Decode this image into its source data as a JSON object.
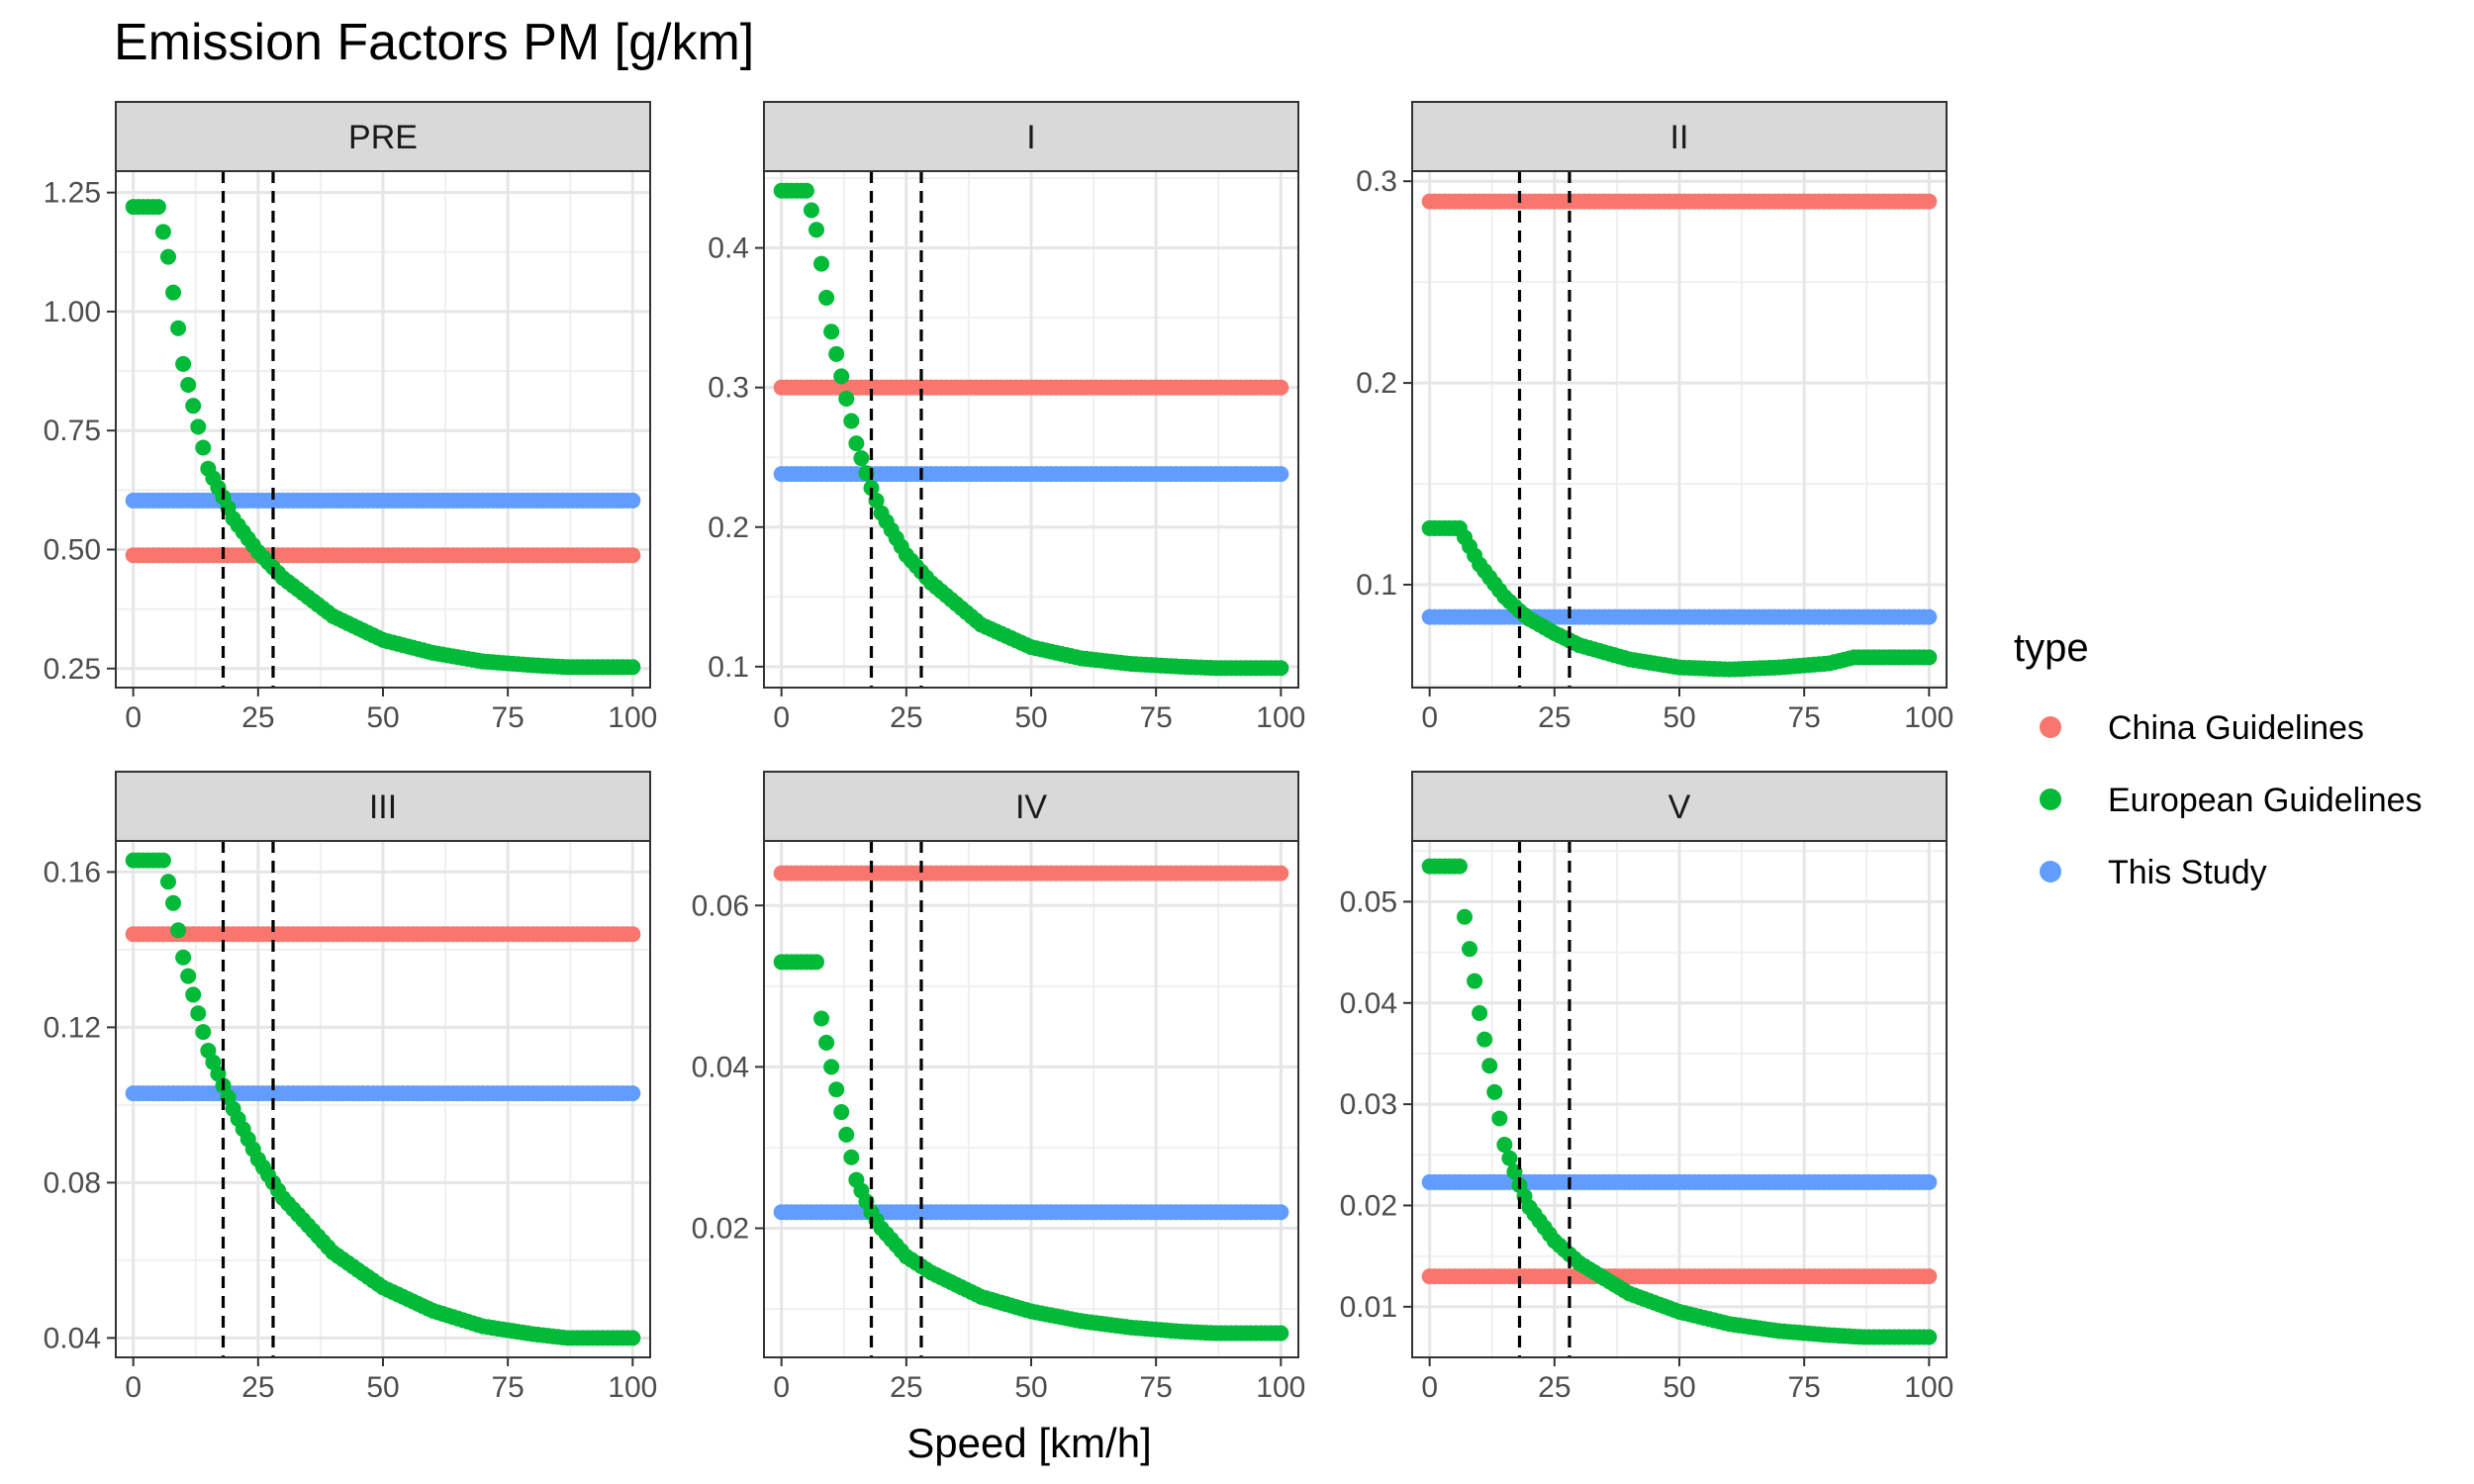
{
  "chart_data": {
    "type": "scatter",
    "title": "Emission Factors PM [g/km]",
    "xlabel": "Speed [km/h]",
    "ylabel": "",
    "xlim": [
      0,
      100
    ],
    "x_ticks": [
      0,
      25,
      50,
      75,
      100
    ],
    "x_tick_labels": [
      "0",
      "25",
      "50",
      "75",
      "100"
    ],
    "grid": true,
    "legend": {
      "title": "type",
      "position": "right",
      "entries": [
        {
          "name": "China Guidelines",
          "color": "#F8766D"
        },
        {
          "name": "European Guidelines",
          "color": "#00BA38"
        },
        {
          "name": "This Study",
          "color": "#619CFF"
        }
      ]
    },
    "reference_lines_x": [
      18,
      28
    ],
    "x_range_sampled": {
      "start": 0,
      "end": 100,
      "step": 1
    },
    "panels": [
      {
        "name": "PRE",
        "ylim": [
          0.21,
          1.295
        ],
        "y_ticks": [
          0.25,
          0.5,
          0.75,
          1.0,
          1.25
        ],
        "y_tick_labels": [
          "0.25",
          "0.50",
          "0.75",
          "1.00",
          "1.25"
        ],
        "series": [
          {
            "name": "China Guidelines",
            "type": "constant",
            "value": 0.488
          },
          {
            "name": "This Study",
            "type": "constant",
            "value": 0.603
          },
          {
            "name": "European Guidelines",
            "type": "curve",
            "points": [
              [
                0,
                1.22
              ],
              [
                5,
                1.22
              ],
              [
                7,
                1.115
              ],
              [
                10,
                0.89
              ],
              [
                15,
                0.67
              ],
              [
                18,
                0.61
              ],
              [
                20,
                0.565
              ],
              [
                25,
                0.495
              ],
              [
                30,
                0.44
              ],
              [
                40,
                0.36
              ],
              [
                50,
                0.31
              ],
              [
                60,
                0.283
              ],
              [
                70,
                0.265
              ],
              [
                80,
                0.257
              ],
              [
                87,
                0.253
              ],
              [
                100,
                0.253
              ]
            ]
          }
        ]
      },
      {
        "name": "I",
        "ylim": [
          0.085,
          0.455
        ],
        "y_ticks": [
          0.1,
          0.2,
          0.3,
          0.4
        ],
        "y_tick_labels": [
          "0.1",
          "0.2",
          "0.3",
          "0.4"
        ],
        "series": [
          {
            "name": "China Guidelines",
            "type": "constant",
            "value": 0.3
          },
          {
            "name": "This Study",
            "type": "constant",
            "value": 0.238
          },
          {
            "name": "European Guidelines",
            "type": "curve",
            "points": [
              [
                0,
                0.441
              ],
              [
                5,
                0.441
              ],
              [
                7,
                0.413
              ],
              [
                10,
                0.34
              ],
              [
                15,
                0.26
              ],
              [
                18,
                0.228
              ],
              [
                20,
                0.21
              ],
              [
                25,
                0.18
              ],
              [
                30,
                0.16
              ],
              [
                40,
                0.13
              ],
              [
                50,
                0.114
              ],
              [
                60,
                0.106
              ],
              [
                70,
                0.102
              ],
              [
                80,
                0.1
              ],
              [
                87,
                0.099
              ],
              [
                100,
                0.099
              ]
            ]
          }
        ]
      },
      {
        "name": "II",
        "ylim": [
          0.049,
          0.305
        ],
        "y_ticks": [
          0.1,
          0.2,
          0.3
        ],
        "y_tick_labels": [
          "0.1",
          "0.2",
          "0.3"
        ],
        "series": [
          {
            "name": "China Guidelines",
            "type": "constant",
            "value": 0.29
          },
          {
            "name": "This Study",
            "type": "constant",
            "value": 0.084
          },
          {
            "name": "European Guidelines",
            "type": "curve",
            "points": [
              [
                0,
                0.128
              ],
              [
                6,
                0.128
              ],
              [
                10,
                0.11
              ],
              [
                15,
                0.094
              ],
              [
                18,
                0.087
              ],
              [
                20,
                0.083
              ],
              [
                25,
                0.076
              ],
              [
                30,
                0.07
              ],
              [
                40,
                0.063
              ],
              [
                50,
                0.059
              ],
              [
                60,
                0.058
              ],
              [
                70,
                0.059
              ],
              [
                80,
                0.061
              ],
              [
                85,
                0.064
              ],
              [
                100,
                0.064
              ]
            ]
          }
        ]
      },
      {
        "name": "III",
        "ylim": [
          0.035,
          0.168
        ],
        "y_ticks": [
          0.04,
          0.08,
          0.12,
          0.16
        ],
        "y_tick_labels": [
          "0.04",
          "0.08",
          "0.12",
          "0.16"
        ],
        "series": [
          {
            "name": "China Guidelines",
            "type": "constant",
            "value": 0.144
          },
          {
            "name": "This Study",
            "type": "constant",
            "value": 0.103
          },
          {
            "name": "European Guidelines",
            "type": "curve",
            "points": [
              [
                0,
                0.163
              ],
              [
                6,
                0.163
              ],
              [
                8,
                0.152
              ],
              [
                10,
                0.138
              ],
              [
                15,
                0.114
              ],
              [
                18,
                0.105
              ],
              [
                20,
                0.099
              ],
              [
                25,
                0.086
              ],
              [
                30,
                0.076
              ],
              [
                40,
                0.062
              ],
              [
                50,
                0.053
              ],
              [
                60,
                0.047
              ],
              [
                70,
                0.043
              ],
              [
                80,
                0.041
              ],
              [
                87,
                0.04
              ],
              [
                100,
                0.04
              ]
            ]
          }
        ]
      },
      {
        "name": "IV",
        "ylim": [
          0.004,
          0.068
        ],
        "y_ticks": [
          0.02,
          0.04,
          0.06
        ],
        "y_tick_labels": [
          "0.02",
          "0.04",
          "0.06"
        ],
        "series": [
          {
            "name": "China Guidelines",
            "type": "constant",
            "value": 0.064
          },
          {
            "name": "This Study",
            "type": "constant",
            "value": 0.022
          },
          {
            "name": "European Guidelines",
            "type": "curve",
            "points": [
              [
                0,
                0.053
              ],
              [
                7,
                0.053
              ],
              [
                8,
                0.046
              ],
              [
                10,
                0.04
              ],
              [
                15,
                0.026
              ],
              [
                18,
                0.022
              ],
              [
                20,
                0.02
              ],
              [
                25,
                0.0165
              ],
              [
                30,
                0.0145
              ],
              [
                40,
                0.0115
              ],
              [
                50,
                0.0097
              ],
              [
                60,
                0.0085
              ],
              [
                70,
                0.0077
              ],
              [
                80,
                0.0072
              ],
              [
                87,
                0.007
              ],
              [
                100,
                0.007
              ]
            ]
          }
        ]
      },
      {
        "name": "V",
        "ylim": [
          0.005,
          0.056
        ],
        "y_ticks": [
          0.01,
          0.02,
          0.03,
          0.04,
          0.05
        ],
        "y_tick_labels": [
          "0.01",
          "0.02",
          "0.03",
          "0.04",
          "0.05"
        ],
        "series": [
          {
            "name": "China Guidelines",
            "type": "constant",
            "value": 0.013
          },
          {
            "name": "This Study",
            "type": "constant",
            "value": 0.0223
          },
          {
            "name": "European Guidelines",
            "type": "curve",
            "points": [
              [
                0,
                0.0535
              ],
              [
                6,
                0.0535
              ],
              [
                7,
                0.0485
              ],
              [
                10,
                0.039
              ],
              [
                15,
                0.026
              ],
              [
                18,
                0.022
              ],
              [
                20,
                0.0198
              ],
              [
                25,
                0.0165
              ],
              [
                30,
                0.0143
              ],
              [
                40,
                0.0113
              ],
              [
                50,
                0.0095
              ],
              [
                60,
                0.0083
              ],
              [
                70,
                0.0076
              ],
              [
                80,
                0.0072
              ],
              [
                87,
                0.007
              ],
              [
                100,
                0.007
              ]
            ]
          }
        ]
      }
    ]
  }
}
